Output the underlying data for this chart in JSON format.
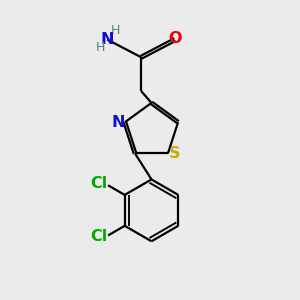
{
  "background_color": "#ebebeb",
  "bond_color": "#000000",
  "N_color": "#1010cc",
  "O_color": "#ee0000",
  "S_color": "#ccaa00",
  "Cl_color": "#00aa00",
  "H_color": "#448888",
  "figsize": [
    3.0,
    3.0
  ],
  "dpi": 100,
  "xlim": [
    0,
    10
  ],
  "ylim": [
    0,
    10
  ]
}
